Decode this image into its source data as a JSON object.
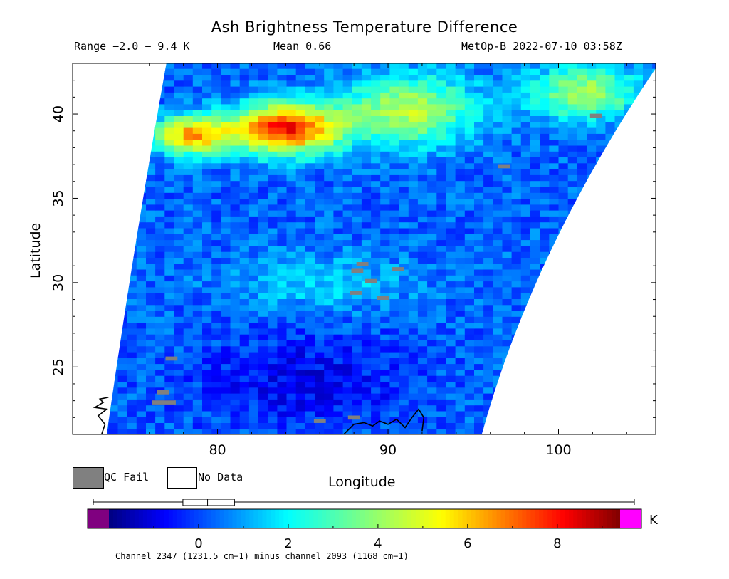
{
  "header": {
    "title": "Ash Brightness Temperature Difference",
    "range_text": "Range −2.0 − 9.4 K",
    "mean_text": "Mean 0.66",
    "source_text": "MetOp-B 2022-07-10 03:58Z"
  },
  "chart_data": {
    "type": "heatmap",
    "title": "Ash Brightness Temperature Difference",
    "xlabel": "Longitude",
    "ylabel": "Latitude",
    "xlim": [
      71.5,
      105.7
    ],
    "ylim": [
      21.0,
      43.0
    ],
    "x_ticks": [
      80,
      90,
      100
    ],
    "y_ticks": [
      25,
      30,
      35,
      40
    ],
    "x_tick_labels": [
      "80",
      "90",
      "100"
    ],
    "y_tick_labels": [
      "25",
      "30",
      "35",
      "40"
    ],
    "value_range": [
      -2.0,
      9.4
    ],
    "mean": 0.66,
    "units": "K",
    "colorbar": {
      "ticks": [
        0,
        2,
        4,
        6,
        8
      ],
      "tick_labels": [
        "0",
        "2",
        "4",
        "6",
        "8"
      ],
      "min": -2.0,
      "max": 9.4,
      "unit_label": "K",
      "caption": "Channel 2347 (1231.5 cm−1) minus channel 2093 (1168 cm−1)",
      "boxplot": {
        "whisker_low": -2.0,
        "q1": -0.35,
        "median": 0.2,
        "q3": 0.8,
        "whisker_high": 9.4
      }
    },
    "regions": [
      {
        "name": "ash plume core",
        "lon": [
          80.5,
          87.5
        ],
        "lat": [
          37.5,
          40.8
        ],
        "value": 8.0
      },
      {
        "name": "plume west edge",
        "lon": [
          76.0,
          81.0
        ],
        "lat": [
          37.5,
          40.0
        ],
        "value": 6.2
      },
      {
        "name": "plume east band",
        "lon": [
          87.0,
          95.5
        ],
        "lat": [
          38.0,
          42.5
        ],
        "value": 4.5
      },
      {
        "name": "northeast edge",
        "lon": [
          98.0,
          105.0
        ],
        "lat": [
          39.5,
          43.0
        ],
        "value": 4.2
      },
      {
        "name": "central band",
        "lon": [
          80.0,
          92.0
        ],
        "lat": [
          28.0,
          32.0
        ],
        "value": 1.5
      },
      {
        "name": "southern background",
        "lon": [
          78.0,
          92.0
        ],
        "lat": [
          21.0,
          27.5
        ],
        "value": -0.8
      }
    ],
    "qc_fail_pixels": [
      {
        "lon": 76.8,
        "lat": 23.5
      },
      {
        "lon": 76.5,
        "lat": 22.9
      },
      {
        "lon": 77.2,
        "lat": 22.9
      },
      {
        "lon": 77.3,
        "lat": 25.5
      },
      {
        "lon": 88.2,
        "lat": 30.7
      },
      {
        "lon": 88.5,
        "lat": 31.1
      },
      {
        "lon": 89.0,
        "lat": 30.1
      },
      {
        "lon": 90.6,
        "lat": 30.8
      },
      {
        "lon": 89.7,
        "lat": 29.1
      },
      {
        "lon": 88.1,
        "lat": 29.4
      },
      {
        "lon": 96.8,
        "lat": 36.9
      },
      {
        "lon": 102.2,
        "lat": 39.9
      },
      {
        "lon": 86.0,
        "lat": 21.8
      },
      {
        "lon": 88.0,
        "lat": 22.0
      }
    ],
    "legend": {
      "qc_fail": "QC Fail",
      "no_data": "No Data"
    }
  },
  "colors": {
    "qc_fail": "#808080",
    "no_data": "#ffffff",
    "below_range": "#800080",
    "above_range": "#ff00ff",
    "coastline": "#000000"
  }
}
